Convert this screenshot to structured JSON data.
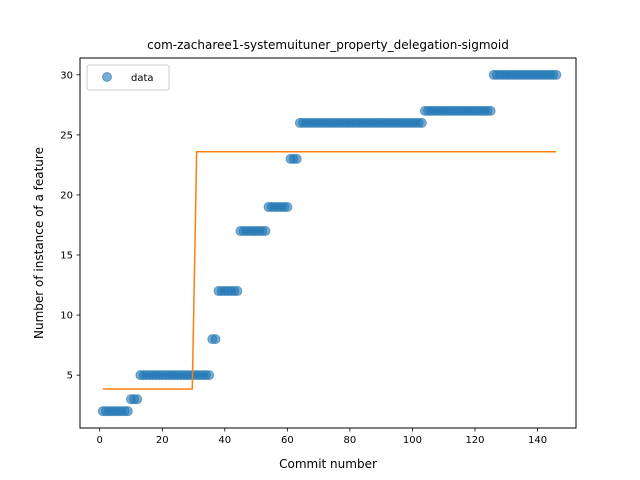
{
  "chart_data": {
    "type": "scatter",
    "title": "com-zacharee1-systemuituner_property_delegation-sigmoid",
    "xlabel": "Commit number",
    "ylabel": "Number of instance of a feature",
    "xlim": [
      -6.3,
      152.3
    ],
    "ylim": [
      0.6,
      31.4
    ],
    "xticks": [
      0,
      20,
      40,
      60,
      80,
      100,
      120,
      140
    ],
    "yticks": [
      5,
      10,
      15,
      20,
      25,
      30
    ],
    "grid": false,
    "legend": {
      "position": "top-left",
      "entries": [
        "data"
      ]
    },
    "colors": {
      "data": "#1f77b4",
      "fit": "#ff7f0e"
    },
    "series": [
      {
        "name": "data",
        "kind": "scatter",
        "x": [
          1,
          2,
          3,
          4,
          5,
          6,
          7,
          8,
          9,
          10,
          11,
          12,
          13,
          14,
          15,
          16,
          17,
          18,
          19,
          20,
          21,
          22,
          23,
          24,
          25,
          26,
          27,
          28,
          29,
          30,
          31,
          32,
          33,
          34,
          35,
          36,
          37,
          38,
          39,
          40,
          41,
          42,
          43,
          44,
          45,
          46,
          47,
          48,
          49,
          50,
          51,
          52,
          53,
          54,
          55,
          56,
          57,
          58,
          59,
          60,
          61,
          62,
          63,
          64,
          65,
          66,
          67,
          68,
          69,
          70,
          71,
          72,
          73,
          74,
          75,
          76,
          77,
          78,
          79,
          80,
          81,
          82,
          83,
          84,
          85,
          86,
          87,
          88,
          89,
          90,
          91,
          92,
          93,
          94,
          95,
          96,
          97,
          98,
          99,
          100,
          101,
          102,
          103,
          104,
          105,
          106,
          107,
          108,
          109,
          110,
          111,
          112,
          113,
          114,
          115,
          116,
          117,
          118,
          119,
          120,
          121,
          122,
          123,
          124,
          125,
          126,
          127,
          128,
          129,
          130,
          131,
          132,
          133,
          134,
          135,
          136,
          137,
          138,
          139,
          140,
          141,
          142,
          143,
          144,
          145,
          146
        ],
        "y": [
          2,
          2,
          2,
          2,
          2,
          2,
          2,
          2,
          2,
          3,
          3,
          3,
          5,
          5,
          5,
          5,
          5,
          5,
          5,
          5,
          5,
          5,
          5,
          5,
          5,
          5,
          5,
          5,
          5,
          5,
          5,
          5,
          5,
          5,
          5,
          8,
          8,
          12,
          12,
          12,
          12,
          12,
          12,
          12,
          17,
          17,
          17,
          17,
          17,
          17,
          17,
          17,
          17,
          19,
          19,
          19,
          19,
          19,
          19,
          19,
          23,
          23,
          23,
          26,
          26,
          26,
          26,
          26,
          26,
          26,
          26,
          26,
          26,
          26,
          26,
          26,
          26,
          26,
          26,
          26,
          26,
          26,
          26,
          26,
          26,
          26,
          26,
          26,
          26,
          26,
          26,
          26,
          26,
          26,
          26,
          26,
          26,
          26,
          26,
          26,
          26,
          26,
          26,
          27,
          27,
          27,
          27,
          27,
          27,
          27,
          27,
          27,
          27,
          27,
          27,
          27,
          27,
          27,
          27,
          27,
          27,
          27,
          27,
          27,
          27,
          30,
          30,
          30,
          30,
          30,
          30,
          30,
          30,
          30,
          30,
          30,
          30,
          30,
          30,
          30,
          30,
          30,
          30,
          30,
          30,
          30
        ]
      },
      {
        "kind": "line",
        "x": [
          1,
          29.6,
          30.4,
          31,
          146
        ],
        "y": [
          3.85,
          3.85,
          15.0,
          23.6,
          23.6
        ]
      }
    ]
  }
}
